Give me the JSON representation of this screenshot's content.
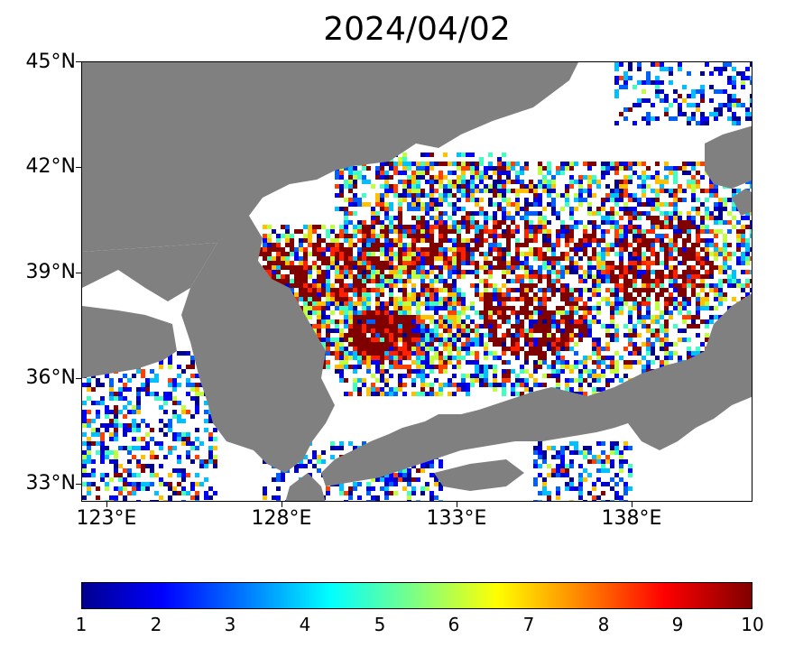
{
  "title": "2024/04/02",
  "map": {
    "lon_range": [
      121.5,
      140.7
    ],
    "lat_range": [
      32.5,
      45.0
    ],
    "lat_ticks": [
      {
        "value": 45,
        "label": "45°N"
      },
      {
        "value": 42,
        "label": "42°N"
      },
      {
        "value": 39,
        "label": "39°N"
      },
      {
        "value": 36,
        "label": "36°N"
      },
      {
        "value": 33,
        "label": "33°N"
      }
    ],
    "lon_ticks": [
      {
        "value": 123,
        "label": "123°E"
      },
      {
        "value": 128,
        "label": "128°E"
      },
      {
        "value": 133,
        "label": "133°E"
      },
      {
        "value": 138,
        "label": "138°E"
      }
    ],
    "land_color": "#808080",
    "ocean_color": "#ffffff"
  },
  "colorbar": {
    "min": 1,
    "max": 10,
    "ticks": [
      "1",
      "2",
      "3",
      "4",
      "5",
      "6",
      "7",
      "8",
      "9",
      "10"
    ],
    "colormap": "jet"
  }
}
